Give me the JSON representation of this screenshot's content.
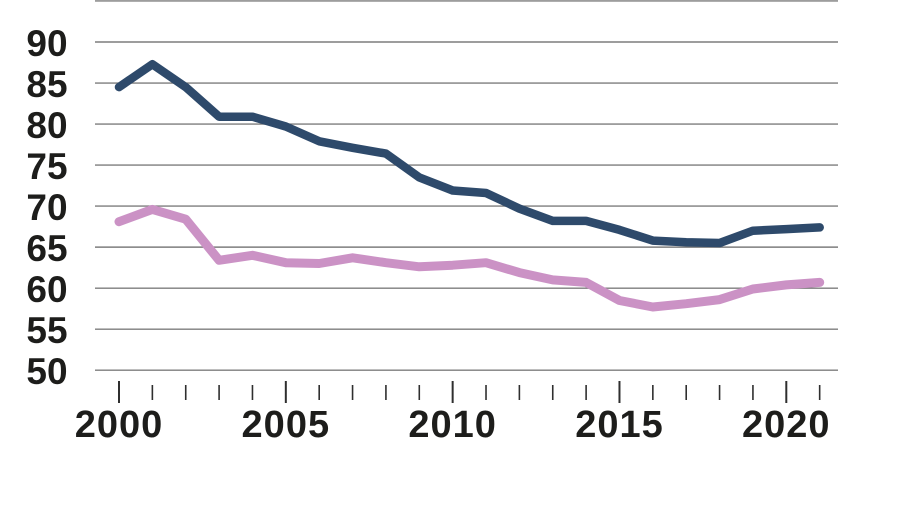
{
  "chart_data": {
    "type": "line",
    "title": "",
    "xlabel": "",
    "ylabel": "",
    "x": [
      2000,
      2001,
      2002,
      2003,
      2004,
      2005,
      2006,
      2007,
      2008,
      2009,
      2010,
      2011,
      2012,
      2013,
      2014,
      2015,
      2016,
      2017,
      2018,
      2019,
      2020,
      2021
    ],
    "series": [
      {
        "name": "dark-blue-series",
        "color": "#2e4a6b",
        "stroke_width": 8.5,
        "values": [
          84.5,
          87.3,
          84.5,
          80.9,
          80.9,
          79.7,
          77.9,
          77.1,
          76.4,
          73.5,
          71.9,
          71.6,
          69.7,
          68.2,
          68.2,
          67.1,
          65.8,
          65.6,
          65.5,
          67.0,
          67.2,
          67.4
        ]
      },
      {
        "name": "pink-series",
        "color": "#cb92c5",
        "stroke_width": 9,
        "values": [
          68.1,
          69.6,
          68.4,
          63.4,
          64.0,
          63.1,
          63.0,
          63.7,
          63.1,
          62.6,
          62.8,
          63.1,
          61.9,
          61.0,
          60.7,
          58.5,
          57.7,
          58.1,
          58.6,
          59.9,
          60.4,
          60.7
        ]
      }
    ],
    "ylim": [
      50,
      95
    ],
    "y_tick_labels": [
      "90",
      "85",
      "80",
      "75",
      "70",
      "65",
      "60",
      "55",
      "50"
    ],
    "y_tick_values": [
      90,
      85,
      80,
      75,
      70,
      65,
      60,
      55,
      50
    ],
    "y_top_border_value": 95,
    "x_major_tick_labels": [
      "2000",
      "2005",
      "2010",
      "2015",
      "2020"
    ],
    "x_major_tick_values": [
      2000,
      2005,
      2010,
      2015,
      2020
    ],
    "x_minor_ticks": [
      2001,
      2002,
      2003,
      2004,
      2006,
      2007,
      2008,
      2009,
      2011,
      2012,
      2013,
      2014,
      2016,
      2017,
      2018,
      2019,
      2021
    ],
    "grid": "horizontal",
    "legend": "none"
  },
  "style_colors": {
    "grid_color": "#7d7d7d",
    "tick_color": "#2f2f2f",
    "label_color": "#1d1d1b",
    "background": "#ffffff"
  }
}
